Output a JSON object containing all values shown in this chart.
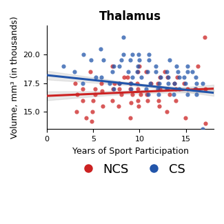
{
  "title": "Thalamus",
  "xlabel": "Years of Sport Participation",
  "ylabel": "Volume, mm³ (in thousands)",
  "xlim": [
    0,
    18
  ],
  "ylim": [
    13.5,
    22.5
  ],
  "xticks": [
    0,
    5,
    10,
    15
  ],
  "yticks": [
    15.0,
    17.5,
    20.0
  ],
  "ncs_color": "#CC2222",
  "cs_color": "#2255AA",
  "ci_color": "#AAAAAA",
  "ncs_x": [
    3,
    3,
    3,
    4,
    4,
    4,
    5,
    5,
    5,
    5,
    5,
    5,
    6,
    6,
    6,
    7,
    7,
    7,
    7,
    8,
    8,
    8,
    8,
    8,
    9,
    9,
    9,
    9,
    9,
    9,
    10,
    10,
    10,
    10,
    10,
    10,
    10,
    11,
    11,
    11,
    11,
    12,
    12,
    12,
    12,
    12,
    13,
    13,
    13,
    13,
    13,
    14,
    14,
    14,
    14,
    15,
    15,
    15,
    16,
    16,
    17,
    17,
    17
  ],
  "ncs_y": [
    17.5,
    16.5,
    15.0,
    17.0,
    16.0,
    14.5,
    18.5,
    17.0,
    16.5,
    16.0,
    15.0,
    14.2,
    17.5,
    16.8,
    15.5,
    19.0,
    17.5,
    17.0,
    16.0,
    18.0,
    17.5,
    17.0,
    16.5,
    15.5,
    18.0,
    17.5,
    17.0,
    16.5,
    15.8,
    14.5,
    19.0,
    18.5,
    17.5,
    17.0,
    16.5,
    16.0,
    15.5,
    18.5,
    17.5,
    16.5,
    16.0,
    18.0,
    17.5,
    17.0,
    16.0,
    15.5,
    18.5,
    18.0,
    17.0,
    16.5,
    15.0,
    18.0,
    17.5,
    17.0,
    16.0,
    17.5,
    17.0,
    14.5,
    19.0,
    17.0,
    21.5,
    17.0,
    14.0
  ],
  "cs_x": [
    2,
    3,
    4,
    4,
    5,
    5,
    6,
    6,
    6,
    7,
    7,
    7,
    7,
    8,
    8,
    8,
    8,
    8,
    9,
    9,
    9,
    9,
    9,
    9,
    10,
    10,
    10,
    10,
    10,
    11,
    11,
    11,
    11,
    11,
    11,
    12,
    12,
    12,
    12,
    12,
    12,
    13,
    13,
    13,
    13,
    13,
    14,
    14,
    14,
    14,
    14,
    14,
    15,
    15,
    15,
    15,
    15,
    16,
    16,
    16,
    16,
    16,
    17,
    17
  ],
  "cs_y": [
    19.0,
    18.5,
    17.5,
    20.0,
    19.5,
    18.0,
    20.5,
    19.5,
    18.0,
    19.0,
    18.5,
    17.5,
    17.0,
    21.5,
    20.0,
    19.5,
    19.0,
    17.5,
    20.0,
    19.5,
    18.5,
    18.0,
    17.5,
    17.0,
    20.0,
    19.5,
    19.0,
    18.5,
    18.0,
    20.0,
    19.5,
    18.5,
    17.5,
    17.0,
    16.5,
    19.0,
    18.5,
    18.0,
    17.5,
    17.0,
    16.5,
    19.5,
    18.5,
    18.0,
    17.5,
    17.0,
    19.0,
    18.5,
    18.0,
    17.5,
    17.0,
    16.5,
    19.0,
    18.5,
    18.0,
    17.5,
    16.5,
    18.5,
    18.0,
    17.5,
    17.0,
    16.5,
    17.5,
    13.5
  ],
  "ncs_slope": 0.035,
  "ncs_intercept": 16.4,
  "cs_slope": -0.085,
  "cs_intercept": 18.2,
  "background_color": "#FFFFFF",
  "legend_fontsize": 13,
  "title_fontsize": 12,
  "axis_fontsize": 9,
  "tick_fontsize": 8,
  "marker_size": 20,
  "marker_alpha": 0.75,
  "ci_alpha": 0.25,
  "line_width": 2.2
}
